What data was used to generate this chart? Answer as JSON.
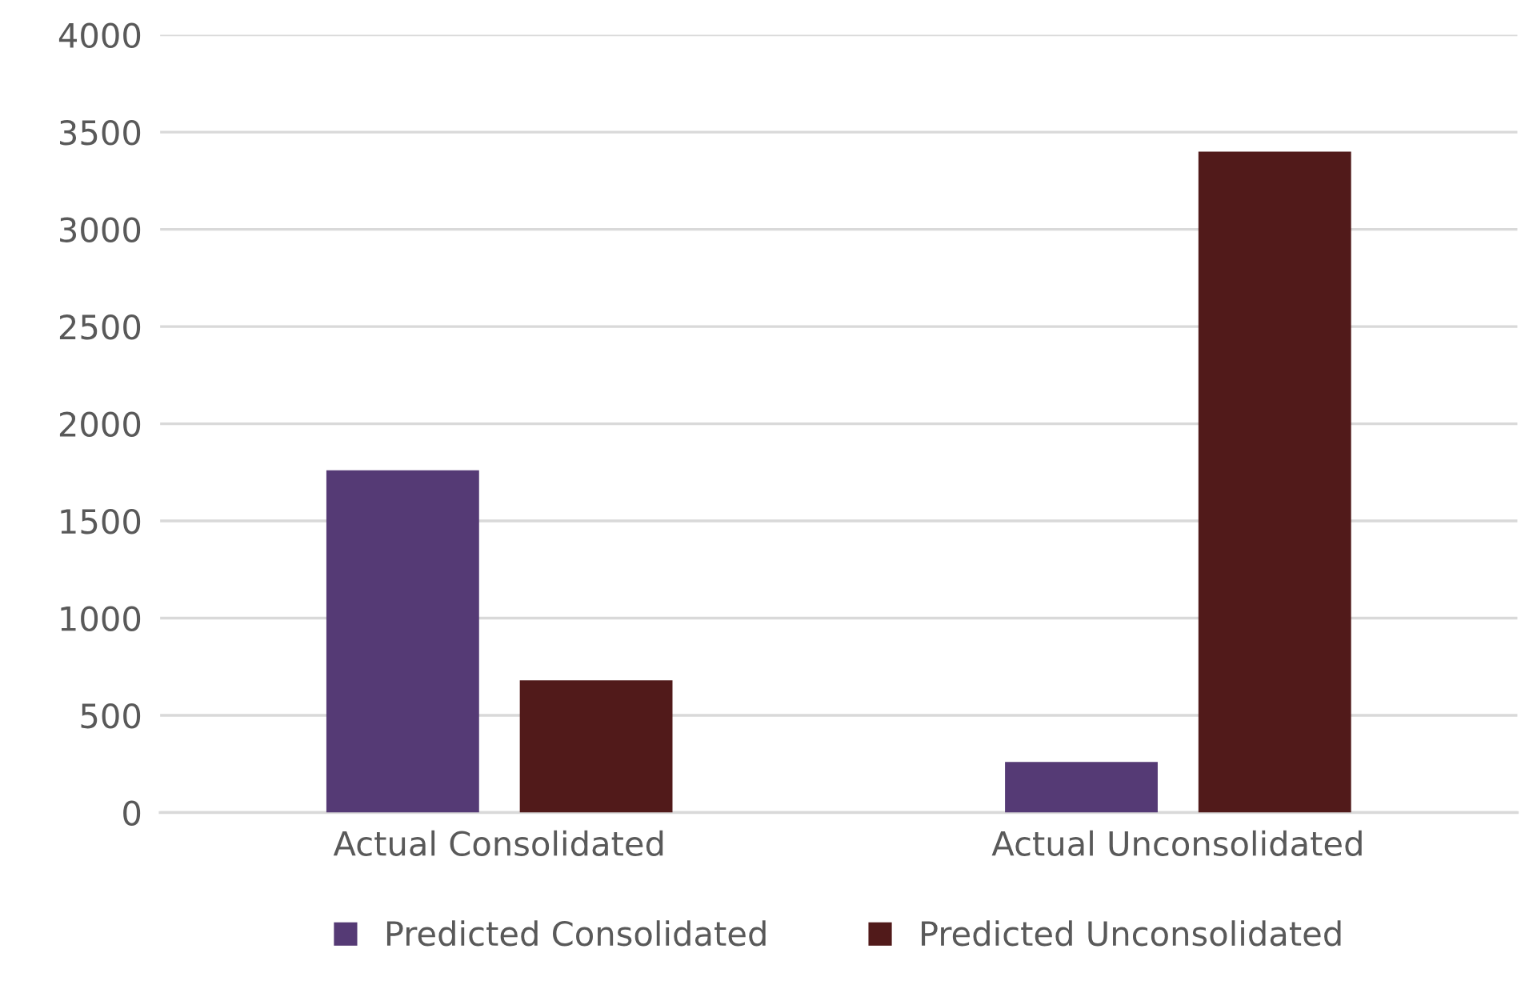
{
  "chart_data": {
    "type": "bar",
    "categories": [
      "Actual Consolidated",
      "Actual Unconsolidated"
    ],
    "series": [
      {
        "name": "Predicted Consolidated",
        "color": "#553a75",
        "values": [
          1760,
          260
        ]
      },
      {
        "name": "Predicted Unconsolidated",
        "color": "#511a1a",
        "values": [
          680,
          3400
        ]
      }
    ],
    "ylim": [
      0,
      4000
    ],
    "yticks": [
      0,
      500,
      1000,
      1500,
      2000,
      2500,
      3000,
      3500,
      4000
    ],
    "grid": "y",
    "legend": "bottom"
  }
}
